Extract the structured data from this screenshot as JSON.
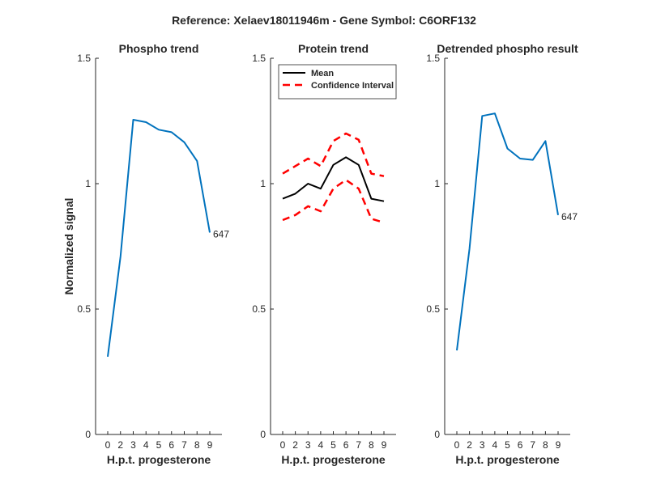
{
  "figure_title": "Reference:  Xelaev18011946m - Gene Symbol:  C6ORF132",
  "colors": {
    "phospho_line": "#0072BD",
    "mean_line": "#000000",
    "ci_line": "#FF0000",
    "axis": "#262626"
  },
  "chart_data": [
    {
      "type": "line",
      "title": "Phospho trend",
      "xlabel": "H.p.t. progesterone",
      "ylabel": "Normalized signal",
      "categories": [
        "0",
        "2",
        "3",
        "4",
        "5",
        "6",
        "7",
        "8",
        "9"
      ],
      "ylim": [
        0,
        1.5
      ],
      "yticks": [
        "0",
        "0.5",
        "1",
        "1.5"
      ],
      "series": [
        {
          "values": [
            0.31,
            0.71,
            1.255,
            1.245,
            1.215,
            1.205,
            1.165,
            1.09,
            0.805
          ],
          "color": "#0072BD",
          "style": "solid"
        }
      ],
      "end_label": "647"
    },
    {
      "type": "line",
      "title": "Protein trend",
      "xlabel": "H.p.t. progesterone",
      "ylabel": "",
      "categories": [
        "0",
        "2",
        "3",
        "4",
        "5",
        "6",
        "7",
        "8",
        "9"
      ],
      "ylim": [
        0,
        1.5
      ],
      "yticks": [
        "0",
        "0.5",
        "1",
        "1.5"
      ],
      "legend_position": "top-left",
      "series": [
        {
          "name": "Mean",
          "values": [
            0.94,
            0.96,
            1.0,
            0.98,
            1.075,
            1.105,
            1.075,
            0.94,
            0.93
          ],
          "color": "#000000",
          "style": "solid"
        },
        {
          "name": "Confidence Interval",
          "values": [
            1.04,
            1.07,
            1.1,
            1.07,
            1.17,
            1.2,
            1.175,
            1.04,
            1.03
          ],
          "color": "#FF0000",
          "style": "dashed"
        },
        {
          "values": [
            0.855,
            0.875,
            0.91,
            0.89,
            0.98,
            1.015,
            0.98,
            0.86,
            0.845
          ],
          "color": "#FF0000",
          "style": "dashed"
        }
      ]
    },
    {
      "type": "line",
      "title": "Detrended phospho result",
      "xlabel": "H.p.t. progesterone",
      "ylabel": "",
      "categories": [
        "0",
        "2",
        "3",
        "4",
        "5",
        "6",
        "7",
        "8",
        "9"
      ],
      "ylim": [
        0,
        1.5
      ],
      "yticks": [
        "0",
        "0.5",
        "1",
        "1.5"
      ],
      "series": [
        {
          "values": [
            0.335,
            0.74,
            1.27,
            1.28,
            1.14,
            1.1,
            1.095,
            1.17,
            0.875
          ],
          "color": "#0072BD",
          "style": "solid"
        }
      ],
      "end_label": "647"
    }
  ]
}
